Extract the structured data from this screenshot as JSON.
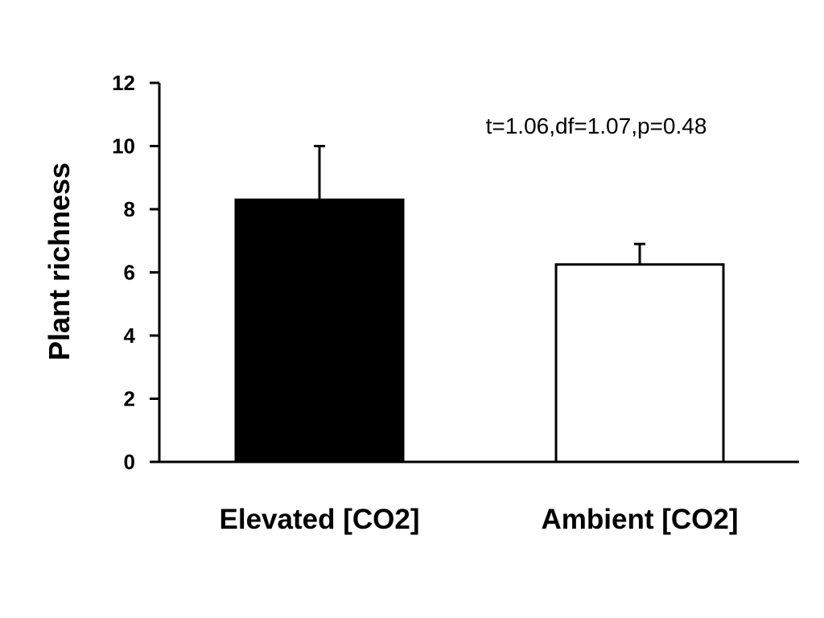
{
  "chart_data": {
    "type": "bar",
    "categories": [
      "Elevated [CO2]",
      "Ambient [CO2]"
    ],
    "values": [
      8.3,
      6.25
    ],
    "error_bars": [
      1.7,
      0.65
    ],
    "bar_colors": [
      "#000000",
      "#ffffff"
    ],
    "ylabel": "Plant richness",
    "xlabel": "",
    "ylim": [
      0,
      12
    ],
    "yticks": [
      "0",
      "2",
      "4",
      "6",
      "8",
      "10",
      "12"
    ],
    "annotation": "t=1.06,df=1.07,p=0.48",
    "grid": false,
    "legend": "none"
  }
}
